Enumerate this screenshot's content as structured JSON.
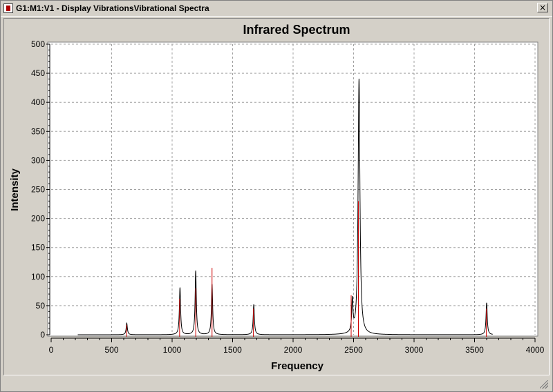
{
  "window": {
    "title": "G1:M1:V1 - Display VibrationsVibrational Spectra",
    "close_glyph": "×",
    "icon": "gaussview-app-icon"
  },
  "colors": {
    "background": "#d4d0c8",
    "plot_background": "#ffffff",
    "grid": "#a0a0a0",
    "spectrum_line": "#000000",
    "stick_line": "#cc0000"
  },
  "chart_data": {
    "type": "line",
    "title": "Infrared Spectrum",
    "xlabel": "Frequency",
    "ylabel": "Intensity",
    "xlim": [
      0,
      4000
    ],
    "ylim": [
      0,
      500
    ],
    "x_ticks": [
      0,
      500,
      1000,
      1500,
      2000,
      2500,
      3000,
      3500,
      4000
    ],
    "y_ticks": [
      0,
      50,
      100,
      150,
      200,
      250,
      300,
      350,
      400,
      450,
      500
    ],
    "grid": true,
    "legend": "none",
    "spectrum_range": [
      220,
      3650
    ],
    "series": [
      {
        "kind": "broadened-spectrum",
        "color": "#000000",
        "peaks": [
          {
            "x": 625,
            "y": 20,
            "w": 6
          },
          {
            "x": 1065,
            "y": 81,
            "w": 6
          },
          {
            "x": 1195,
            "y": 110,
            "w": 6
          },
          {
            "x": 1330,
            "y": 87,
            "w": 6
          },
          {
            "x": 1675,
            "y": 52,
            "w": 6
          },
          {
            "x": 2490,
            "y": 55,
            "w": 6
          },
          {
            "x": 2545,
            "y": 440,
            "w": 9
          },
          {
            "x": 3600,
            "y": 55,
            "w": 6
          }
        ]
      },
      {
        "kind": "sticks",
        "color": "#cc0000",
        "x": [
          625,
          1062,
          1195,
          1330,
          1672,
          2480,
          2540,
          3598
        ],
        "values": [
          17,
          62,
          80,
          115,
          45,
          68,
          230,
          45
        ]
      }
    ]
  }
}
